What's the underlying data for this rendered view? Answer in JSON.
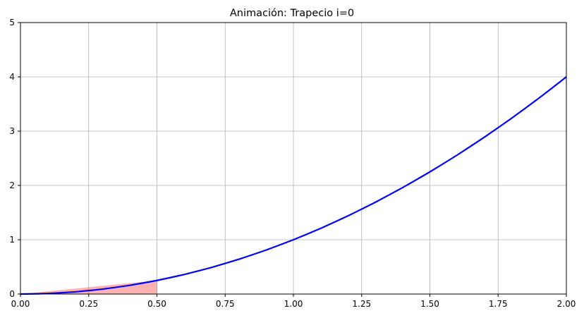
{
  "chart_data": {
    "type": "line",
    "title": "Animación: Trapecio i=0",
    "xlabel": "",
    "ylabel": "",
    "xlim": [
      0,
      2
    ],
    "ylim": [
      0,
      5
    ],
    "grid": true,
    "x_ticks": [
      "0.00",
      "0.25",
      "0.50",
      "0.75",
      "1.00",
      "1.25",
      "1.50",
      "1.75",
      "2.00"
    ],
    "y_ticks": [
      "0",
      "1",
      "2",
      "3",
      "4",
      "5"
    ],
    "series": [
      {
        "type": "line",
        "color": "#0000ff",
        "x": [
          0,
          0.1,
          0.2,
          0.3,
          0.4,
          0.5,
          0.6,
          0.7,
          0.8,
          0.9,
          1.0,
          1.1,
          1.2,
          1.3,
          1.4,
          1.5,
          1.6,
          1.7,
          1.8,
          1.9,
          2.0
        ],
        "y": [
          0,
          0.01,
          0.04,
          0.09,
          0.16,
          0.25,
          0.36,
          0.49,
          0.64,
          0.81,
          1.0,
          1.21,
          1.44,
          1.69,
          1.96,
          2.25,
          2.56,
          2.89,
          3.24,
          3.61,
          4.0
        ]
      },
      {
        "type": "area",
        "color": "#ff0000",
        "opacity": 0.3,
        "x": [
          0,
          0.5
        ],
        "y": [
          0,
          0.25
        ]
      }
    ]
  }
}
